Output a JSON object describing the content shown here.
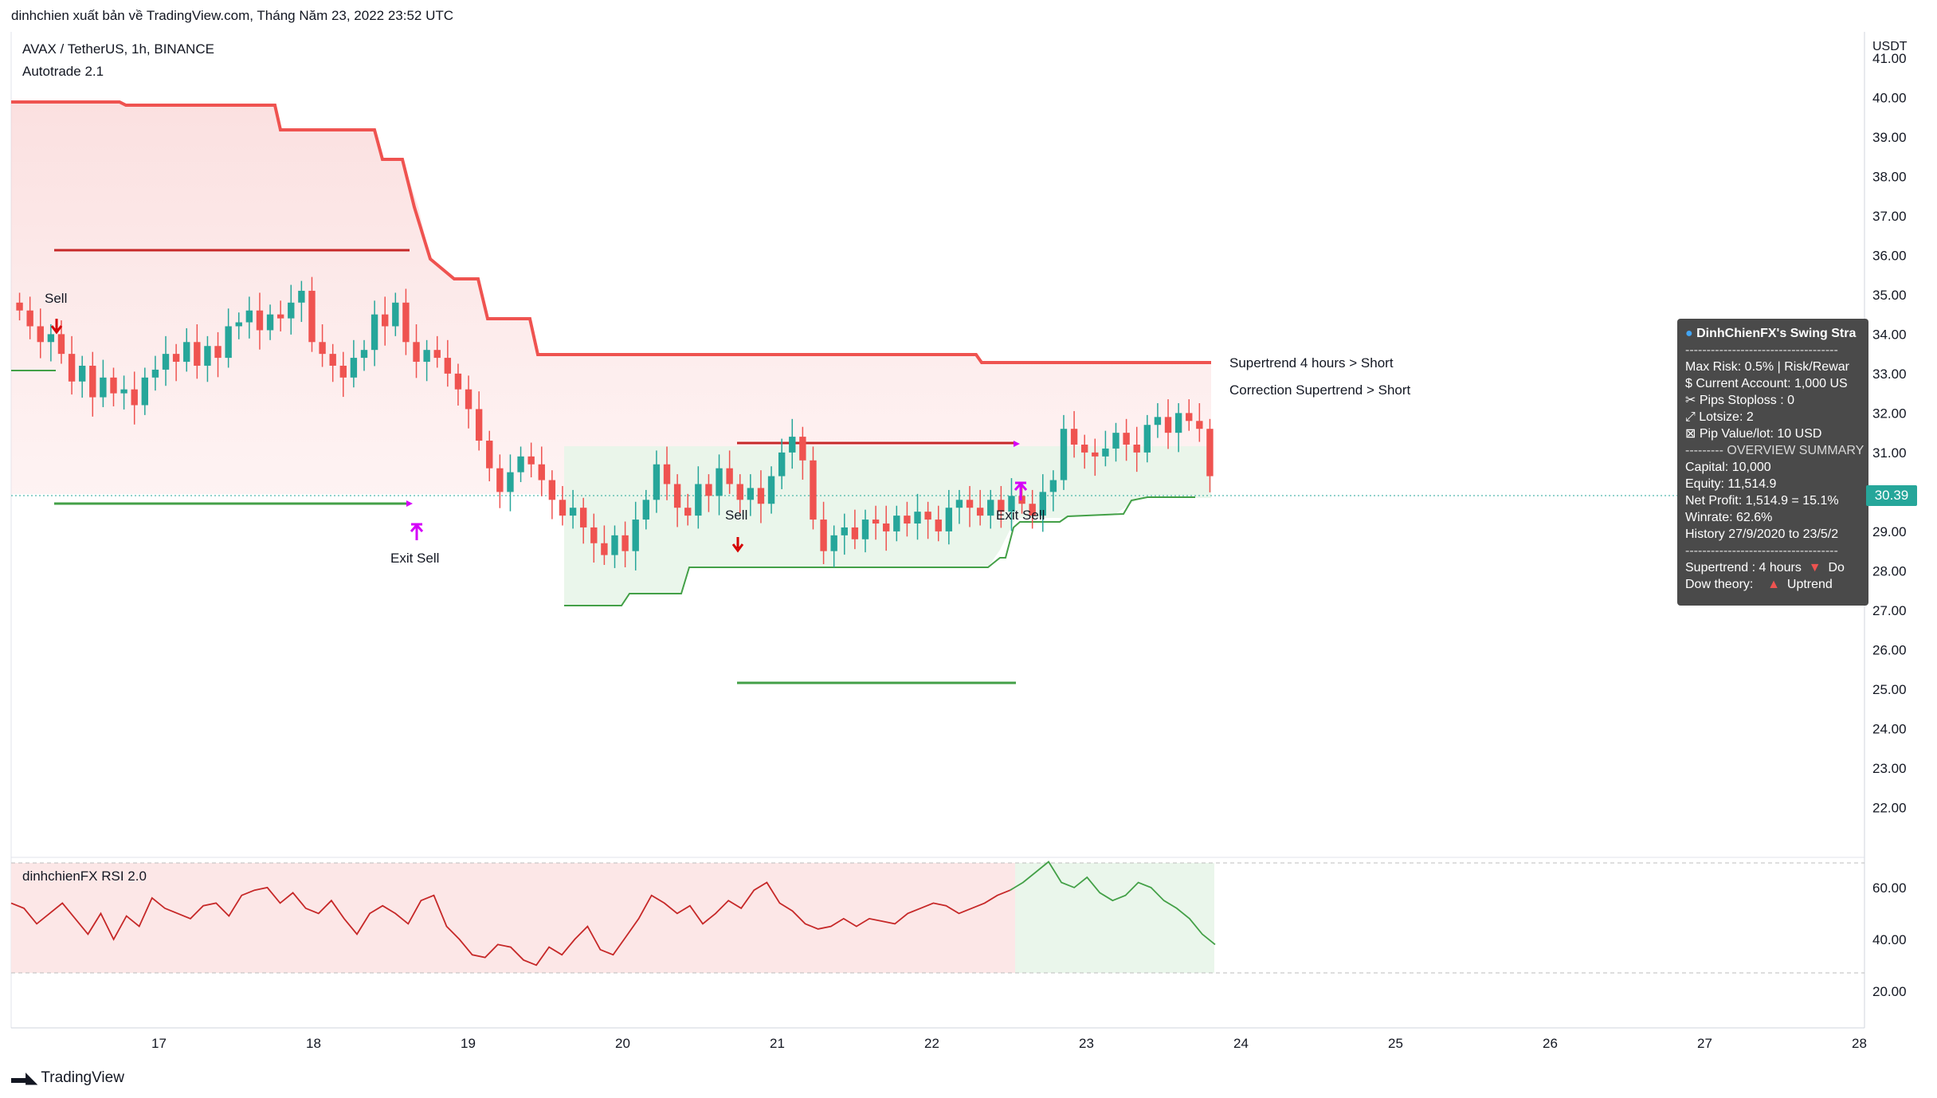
{
  "header": {
    "publish_line": "dinhchien xuất bản về TradingView.com, Tháng Năm 23, 2022 23:52 UTC",
    "symbol_line": "AVAX / TetherUS, 1h, BINANCE",
    "indicator_name": "Autotrade 2.1"
  },
  "price_axis": {
    "currency": "USDT",
    "last_price_label": "30.39"
  },
  "legend": {
    "supertrend_4h": "Supertrend 4 hours > Short",
    "correction_supertrend": "Correction Supertrend  > Short"
  },
  "signals": {
    "sell_1": "Sell",
    "exit_sell_1": "Exit Sell",
    "sell_2": "Sell",
    "exit_sell_2": "Exit Sell"
  },
  "info_panel": {
    "title": "DinhChienFX's Swing Stra",
    "lines": [
      "Max Risk: 0.5% | Risk/Rewar",
      "$ Current Account: 1,000 US",
      "✂ Pips Stoploss : 0",
      "⤢ Lotsize: 2",
      "⊠ Pip Value/lot: 10 USD"
    ],
    "separator": "--------- OVERVIEW SUMMARY",
    "summary": [
      "Capital: 10,000",
      "Equity: 11,514.9",
      "Net Profit: 1,514.9 = 15.1%",
      "Winrate: 62.6%",
      "History 27/9/2020 to 23/5/2"
    ],
    "divider": "------------------------------------",
    "trend_lines": [
      {
        "label": "Supertrend : 4 hours",
        "arrow": "▼",
        "value": "Do"
      },
      {
        "label": "Dow theory:",
        "arrow": "▲",
        "value": "Uptrend"
      }
    ]
  },
  "rsi_panel": {
    "title": "dinhchienFX RSI 2.0"
  },
  "footer": {
    "brand": "TradingView"
  },
  "chart_data": [
    {
      "type": "candlestick",
      "x_ticks": [
        "17",
        "18",
        "19",
        "20",
        "21",
        "22",
        "23",
        "24",
        "25",
        "26",
        "27",
        "28"
      ],
      "y_ticks": [
        22.0,
        23.0,
        24.0,
        25.0,
        26.0,
        27.0,
        28.0,
        29.0,
        30.0,
        31.0,
        32.0,
        33.0,
        34.0,
        35.0,
        36.0,
        37.0,
        38.0,
        39.0,
        40.0,
        41.0
      ],
      "ylim": [
        21.3,
        41.3
      ],
      "last_price": 30.39,
      "close_series": [
        34.6,
        34.2,
        33.8,
        34.0,
        33.5,
        32.8,
        33.2,
        32.4,
        32.9,
        32.5,
        32.6,
        32.2,
        32.9,
        33.1,
        33.5,
        33.3,
        33.8,
        33.2,
        33.7,
        33.4,
        34.2,
        34.3,
        34.6,
        34.1,
        34.5,
        34.4,
        34.8,
        35.1,
        33.8,
        33.5,
        33.2,
        32.9,
        33.4,
        33.6,
        34.5,
        34.2,
        34.8,
        33.8,
        33.3,
        33.6,
        33.4,
        33.0,
        32.6,
        32.1,
        31.3,
        30.6,
        30.0,
        30.5,
        30.9,
        30.7,
        30.3,
        29.8,
        29.4,
        29.6,
        29.1,
        28.7,
        28.4,
        28.9,
        28.5,
        29.3,
        29.8,
        30.7,
        30.2,
        29.6,
        29.4,
        30.2,
        29.9,
        30.6,
        30.2,
        29.8,
        30.1,
        29.7,
        30.4,
        31.0,
        31.4,
        30.8,
        29.3,
        28.5,
        28.9,
        29.1,
        28.8,
        29.3,
        29.2,
        29.0,
        29.4,
        29.2,
        29.5,
        29.3,
        29.0,
        29.6,
        29.8,
        29.6,
        29.4,
        29.8,
        29.5,
        29.9,
        29.7,
        29.4,
        30.0,
        30.3,
        31.6,
        31.2,
        31.0,
        30.9,
        31.1,
        31.5,
        31.2,
        31.0,
        31.7,
        31.9,
        31.5,
        32.0,
        31.8,
        31.6,
        30.4
      ],
      "series": [
        {
          "name": "Supertrend 4 hours",
          "points": [
            [
              0,
              40.3
            ],
            [
              0.18,
              40.3
            ],
            [
              0.2,
              40.2
            ],
            [
              0.43,
              40.2
            ],
            [
              0.45,
              39.6
            ],
            [
              0.6,
              39.6
            ],
            [
              0.62,
              38.8
            ],
            [
              0.66,
              38.0
            ],
            [
              0.69,
              37.3
            ],
            [
              0.72,
              36.4
            ],
            [
              0.78,
              35.8
            ],
            [
              0.8,
              34.8
            ],
            [
              0.86,
              34.8
            ],
            [
              0.88,
              33.9
            ],
            [
              1.6,
              33.9
            ],
            [
              1.62,
              33.7
            ],
            [
              2.0,
              33.7
            ]
          ]
        },
        {
          "name": "Correction Supertrend",
          "points": [
            [
              0.9,
              27.6
            ],
            [
              1.0,
              27.6
            ],
            [
              1.05,
              27.9
            ],
            [
              1.12,
              28.0
            ],
            [
              1.15,
              28.6
            ],
            [
              1.2,
              28.6
            ],
            [
              1.22,
              29.2
            ],
            [
              1.35,
              29.2
            ],
            [
              1.58,
              29.8
            ],
            [
              1.65,
              30.1
            ],
            [
              1.8,
              30.2
            ],
            [
              1.9,
              30.4
            ],
            [
              2.0,
              30.4
            ]
          ]
        }
      ]
    },
    {
      "type": "line",
      "name": "dinhchienFX RSI 2.0",
      "y_ticks": [
        20.0,
        40.0,
        60.0
      ],
      "ylim": [
        15,
        72
      ],
      "values": [
        54,
        52,
        46,
        50,
        54,
        48,
        42,
        50,
        40,
        49,
        45,
        56,
        52,
        50,
        48,
        53,
        54,
        49,
        57,
        59,
        60,
        54,
        58,
        52,
        50,
        55,
        48,
        42,
        50,
        53,
        50,
        46,
        55,
        57,
        45,
        40,
        34,
        33,
        38,
        37,
        32,
        30,
        37,
        34,
        40,
        45,
        36,
        34,
        41,
        48,
        57,
        54,
        50,
        53,
        46,
        50,
        55,
        52,
        59,
        62,
        54,
        51,
        46,
        44,
        45,
        48,
        45,
        48,
        47,
        46,
        50,
        52,
        54,
        53,
        50,
        52,
        54,
        57,
        59,
        62,
        66,
        70,
        62,
        60,
        64,
        58,
        55,
        57,
        62,
        60,
        55,
        52,
        48,
        42,
        38
      ]
    }
  ]
}
